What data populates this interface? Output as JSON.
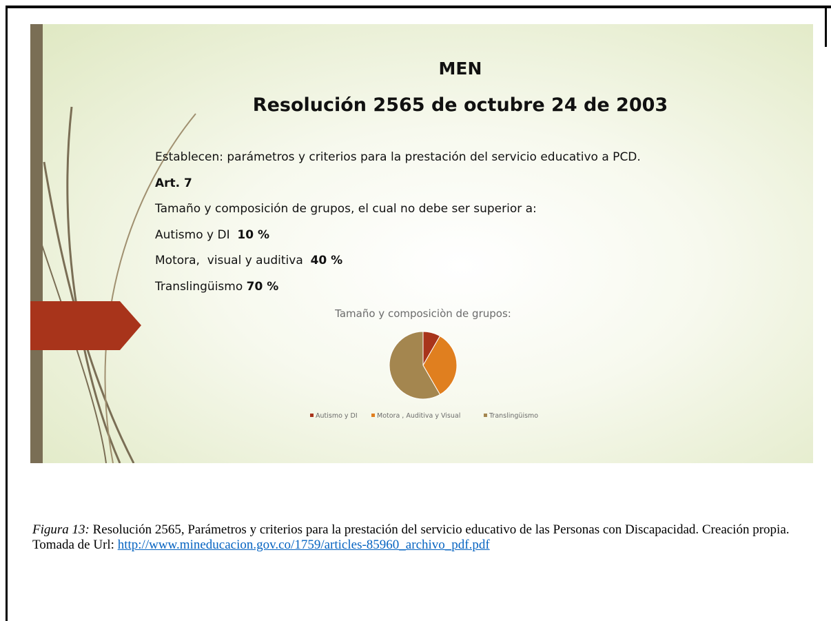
{
  "slide": {
    "title": "MEN",
    "subtitle": "Resolución 2565  de octubre 24 de 2003",
    "lines": [
      {
        "text": "Establecen: parámetros y criterios para la prestación del servicio educativo a PCD."
      },
      {
        "bold": "Art. 7"
      },
      {
        "text": "Tamaño y composición de grupos, el cual no debe ser superior a:"
      },
      {
        "text": "Autismo y DI  ",
        "bold": "10 %"
      },
      {
        "text": "Motora,  visual y auditiva  ",
        "bold": "40 %"
      },
      {
        "text": "Translingüismo ",
        "bold": "70 %"
      }
    ]
  },
  "chart_data": {
    "type": "pie",
    "title": "Tamaño y composiciòn de grupos:",
    "categories": [
      "Autismo y DI",
      "Motora , Auditiva y Visual",
      "Translingüismo"
    ],
    "values": [
      10,
      40,
      70
    ],
    "colors": [
      "#a8341b",
      "#e07f1f",
      "#a4864f"
    ]
  },
  "caption": {
    "label": "Figura 13:",
    "text": " Resolución 2565, Parámetros y criterios para la prestación del servicio educativo de las Personas con Discapacidad. Creación propia. Tomada de Url: ",
    "link": "http://www.mineducacion.gov.co/1759/articles-85960_archivo_pdf.pdf"
  }
}
